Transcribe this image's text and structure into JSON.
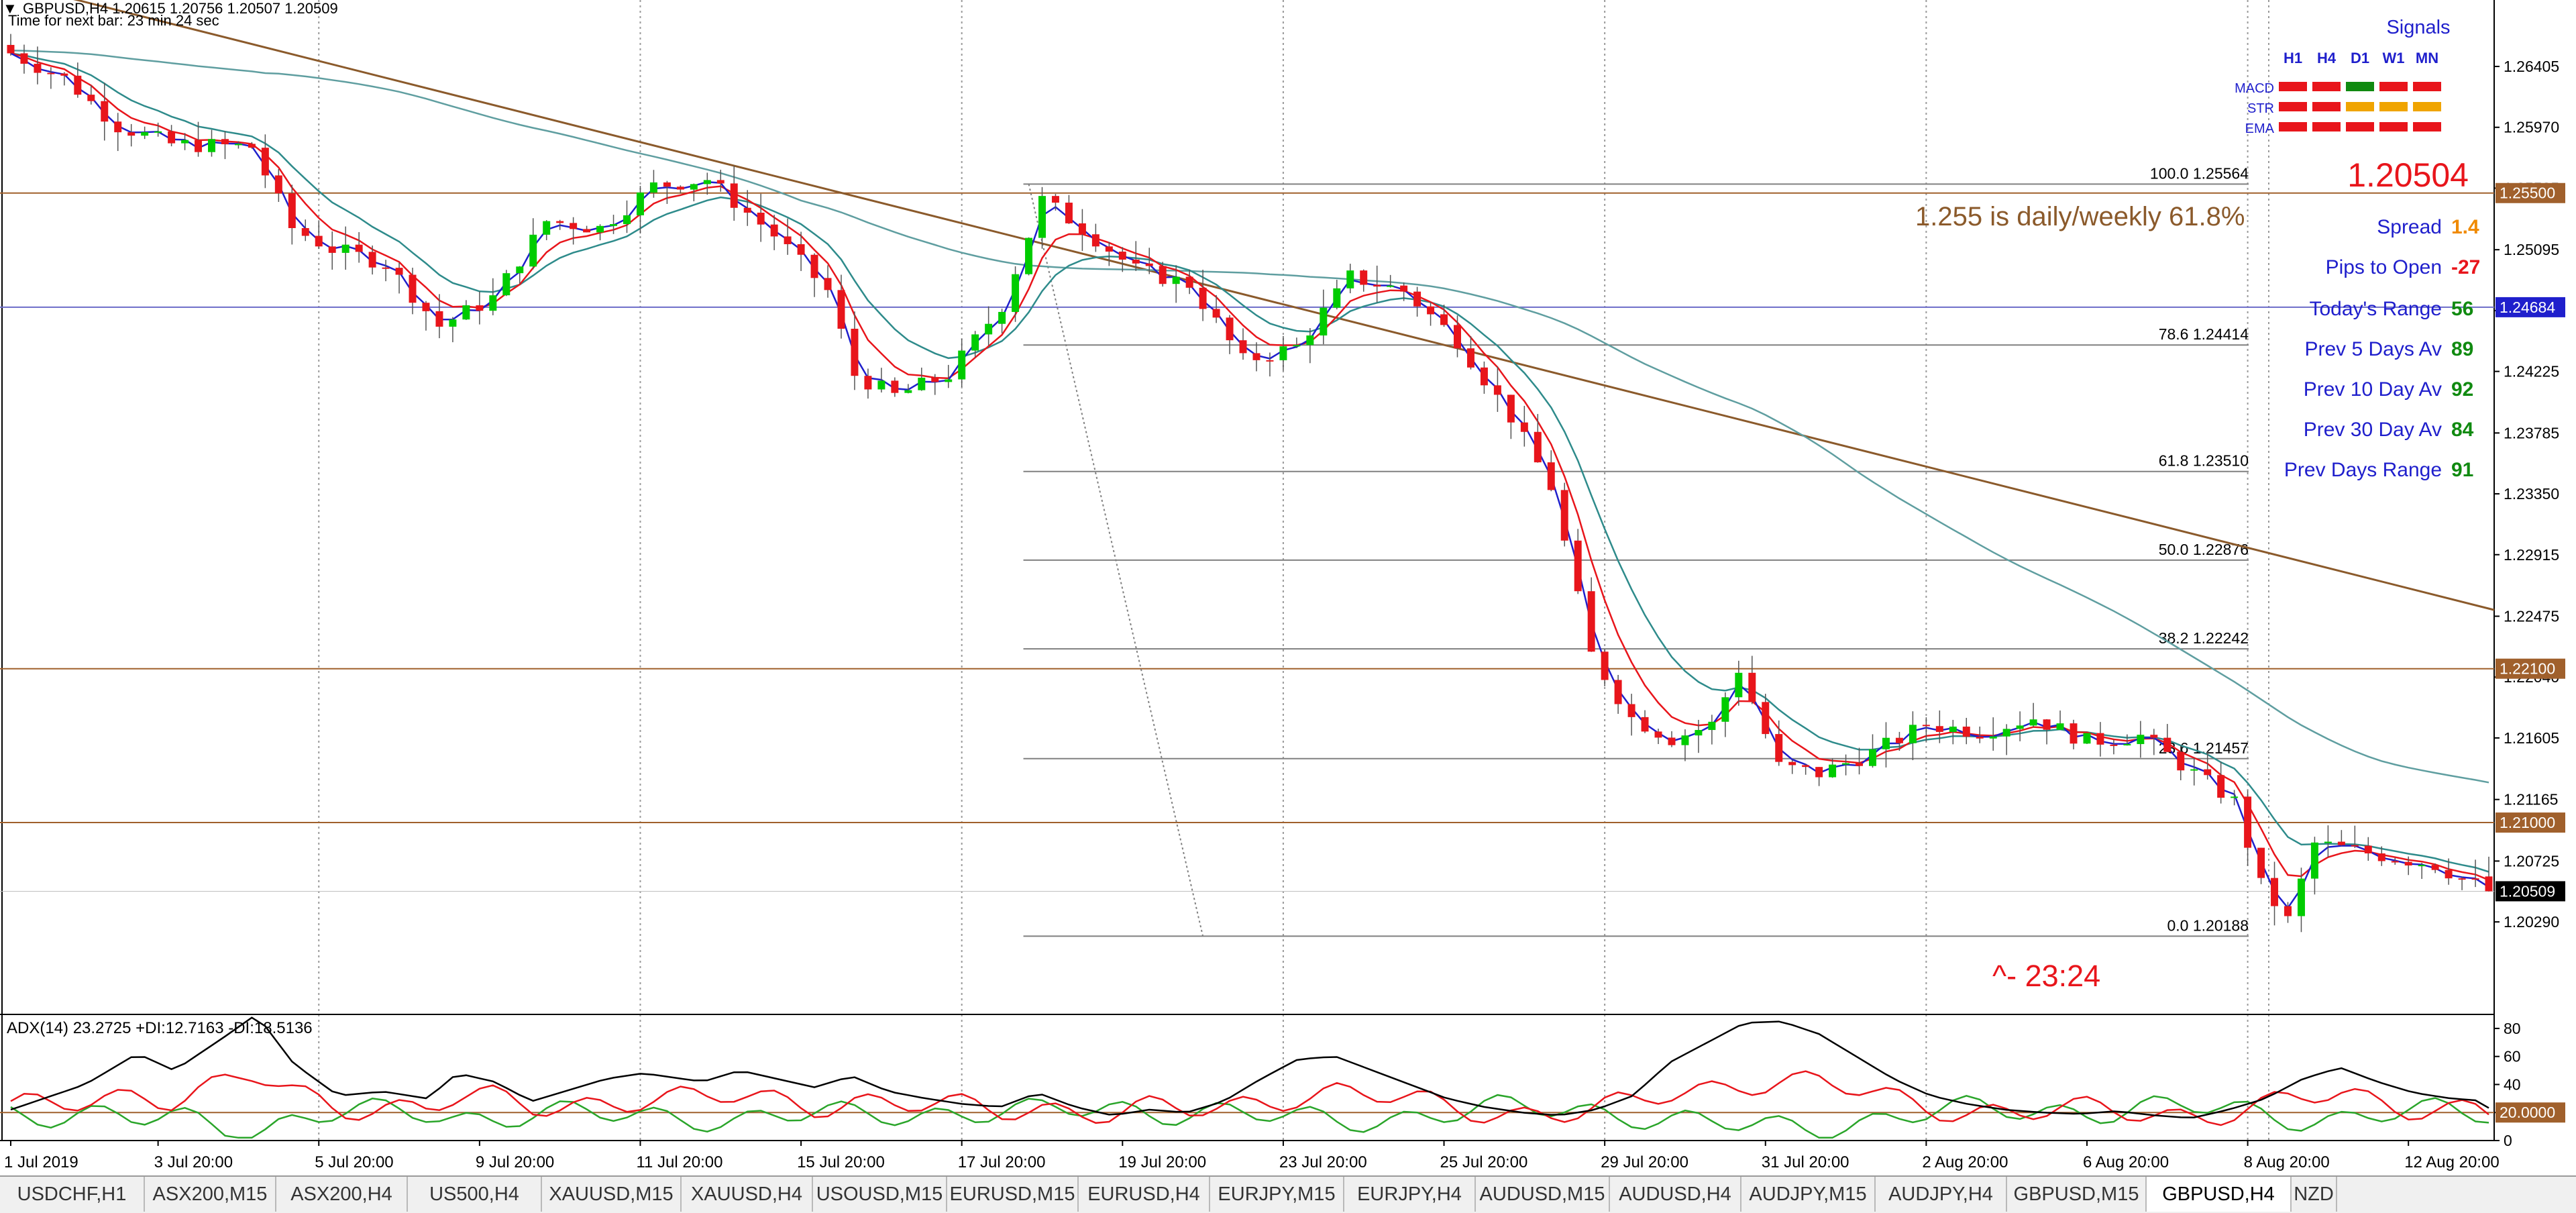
{
  "header": {
    "symbol_line": "GBPUSD,H4  1.20615 1.20756 1.20507 1.20509",
    "timer_line": "Time for next bar: 23 min 24 sec"
  },
  "signals": {
    "title": "Signals",
    "columns": [
      "H1",
      "H4",
      "D1",
      "W1",
      "MN"
    ],
    "rows": [
      {
        "label": "MACD",
        "colors": [
          "#e8151b",
          "#e8151b",
          "#108a10",
          "#e8151b",
          "#e8151b"
        ]
      },
      {
        "label": "STR",
        "colors": [
          "#e8151b",
          "#e8151b",
          "#f0a400",
          "#f0a400",
          "#f0a400"
        ]
      },
      {
        "label": "EMA",
        "colors": [
          "#e8151b",
          "#e8151b",
          "#e8151b",
          "#e8151b",
          "#e8151b"
        ]
      }
    ]
  },
  "stats": {
    "price": "1.20504",
    "rows": [
      {
        "label": "Spread",
        "value": "1.4",
        "color": "#f08a00"
      },
      {
        "label": "Pips to Open",
        "value": "-27",
        "color": "#e8151b"
      },
      {
        "label": "Today's Range",
        "value": "56",
        "color": "#108a10"
      },
      {
        "label": "Prev 5 Days Av",
        "value": "89",
        "color": "#108a10"
      },
      {
        "label": "Prev 10 Day Av",
        "value": "92",
        "color": "#108a10"
      },
      {
        "label": "Prev 30 Day Av",
        "value": "84",
        "color": "#108a10"
      },
      {
        "label": "Prev Days Range",
        "value": "91",
        "color": "#108a10"
      }
    ]
  },
  "annotations": {
    "daily_note": "1.255 is daily/weekly 61.8%",
    "countdown": "^- 23:24"
  },
  "chart_data": {
    "type": "candlestick",
    "symbol": "GBPUSD",
    "timeframe": "H4",
    "ohlc_current": {
      "open": 1.20615,
      "high": 1.20756,
      "low": 1.20507,
      "close": 1.20509
    },
    "ylim": [
      1.1995,
      1.2688
    ],
    "y_ticks": [
      "1.26405",
      "1.25970",
      "1.25535",
      "1.25095",
      "1.24660",
      "1.24225",
      "1.23785",
      "1.23350",
      "1.22915",
      "1.22475",
      "1.22040",
      "1.21605",
      "1.21165",
      "1.20725",
      "1.20290"
    ],
    "x_ticks": [
      "1 Jul 2019",
      "3 Jul 20:00",
      "5 Jul 20:00",
      "9 Jul 20:00",
      "11 Jul 20:00",
      "15 Jul 20:00",
      "17 Jul 20:00",
      "19 Jul 20:00",
      "23 Jul 20:00",
      "25 Jul 20:00",
      "29 Jul 20:00",
      "31 Jul 20:00",
      "2 Aug 20:00",
      "6 Aug 20:00",
      "8 Aug 20:00",
      "12 Aug 20:00"
    ],
    "x_tick_bars": [
      0,
      11,
      23,
      35,
      47,
      59,
      71,
      83,
      95,
      107,
      119,
      131,
      143,
      155,
      167,
      179
    ],
    "bar_count": 186,
    "price_path": [
      {
        "bar": 0,
        "price": 1.265
      },
      {
        "bar": 4,
        "price": 1.2632
      },
      {
        "bar": 8,
        "price": 1.2598
      },
      {
        "bar": 12,
        "price": 1.2585
      },
      {
        "bar": 18,
        "price": 1.2583
      },
      {
        "bar": 21,
        "price": 1.2525
      },
      {
        "bar": 24,
        "price": 1.251
      },
      {
        "bar": 28,
        "price": 1.25
      },
      {
        "bar": 32,
        "price": 1.2455
      },
      {
        "bar": 36,
        "price": 1.2475
      },
      {
        "bar": 40,
        "price": 1.253
      },
      {
        "bar": 44,
        "price": 1.2525
      },
      {
        "bar": 48,
        "price": 1.2555
      },
      {
        "bar": 52,
        "price": 1.256
      },
      {
        "bar": 57,
        "price": 1.252
      },
      {
        "bar": 61,
        "price": 1.248
      },
      {
        "bar": 63,
        "price": 1.242
      },
      {
        "bar": 66,
        "price": 1.2405
      },
      {
        "bar": 70,
        "price": 1.242
      },
      {
        "bar": 74,
        "price": 1.247
      },
      {
        "bar": 77,
        "price": 1.2545
      },
      {
        "bar": 80,
        "price": 1.2525
      },
      {
        "bar": 84,
        "price": 1.2495
      },
      {
        "bar": 88,
        "price": 1.2485
      },
      {
        "bar": 92,
        "price": 1.243
      },
      {
        "bar": 96,
        "price": 1.244
      },
      {
        "bar": 100,
        "price": 1.249
      },
      {
        "bar": 104,
        "price": 1.248
      },
      {
        "bar": 108,
        "price": 1.2445
      },
      {
        "bar": 112,
        "price": 1.239
      },
      {
        "bar": 115,
        "price": 1.234
      },
      {
        "bar": 118,
        "price": 1.222
      },
      {
        "bar": 121,
        "price": 1.2175
      },
      {
        "bar": 124,
        "price": 1.216
      },
      {
        "bar": 127,
        "price": 1.217
      },
      {
        "bar": 129,
        "price": 1.221
      },
      {
        "bar": 132,
        "price": 1.214
      },
      {
        "bar": 135,
        "price": 1.2135
      },
      {
        "bar": 139,
        "price": 1.215
      },
      {
        "bar": 143,
        "price": 1.217
      },
      {
        "bar": 147,
        "price": 1.2165
      },
      {
        "bar": 151,
        "price": 1.2175
      },
      {
        "bar": 155,
        "price": 1.2158
      },
      {
        "bar": 159,
        "price": 1.2162
      },
      {
        "bar": 163,
        "price": 1.2135
      },
      {
        "bar": 166,
        "price": 1.2115
      },
      {
        "bar": 168,
        "price": 1.2055
      },
      {
        "bar": 170,
        "price": 1.203
      },
      {
        "bar": 172,
        "price": 1.2085
      },
      {
        "bar": 175,
        "price": 1.208
      },
      {
        "bar": 178,
        "price": 1.2075
      },
      {
        "bar": 181,
        "price": 1.207
      },
      {
        "bar": 183,
        "price": 1.206
      },
      {
        "bar": 185,
        "price": 1.2051
      }
    ],
    "horizontal_levels": [
      {
        "price": 1.255,
        "color": "#a0602c",
        "label": "1.25500",
        "label_bg": "#a0602c"
      },
      {
        "price": 1.24684,
        "color": "#6c6cc8",
        "label": "1.24684",
        "label_bg": "#1f1fcc"
      },
      {
        "price": 1.221,
        "color": "#a0602c",
        "label": "1.22100",
        "label_bg": "#a0602c"
      },
      {
        "price": 1.21,
        "color": "#a0602c",
        "label": "1.21000",
        "label_bg": "#a0602c"
      },
      {
        "price": 1.20509,
        "color": "#000000",
        "label": "1.20509",
        "label_bg": "#000000"
      }
    ],
    "fibonacci": [
      {
        "level": "100.0",
        "price": 1.25564
      },
      {
        "level": "78.6",
        "price": 1.24414
      },
      {
        "level": "61.8",
        "price": 1.2351
      },
      {
        "level": "50.0",
        "price": 1.22876
      },
      {
        "level": "38.2",
        "price": 1.22242
      },
      {
        "level": "23.6",
        "price": 1.21457
      },
      {
        "level": "0.0",
        "price": 1.20188
      }
    ],
    "fib_level_text": [
      "100.0  1.25564",
      "78.6  1.24414",
      "61.8  1.23510",
      "50.0  1.22876",
      "38.2  1.22242",
      "23.6  1.21457",
      "0.0  1.20188"
    ],
    "trendline": {
      "bar1": 0,
      "price1": 1.27,
      "bar2": 186,
      "price2": 1.2252,
      "color": "#8b5a2b"
    },
    "fib_diagonal": {
      "bar1": 76,
      "price1": 1.25564,
      "bar2": 89,
      "price2": 1.20188
    },
    "ema_long_color": "#2e8b8b",
    "ema_fast_color": "#e8151b",
    "ema_fastest_color": "#1f1fcc",
    "bull_color": "#00cc00",
    "bear_color": "#e8151b",
    "indicator": {
      "name": "ADX(14)",
      "label": "ADX(14) 23.2725 +DI:12.7163 -DI:18.5136",
      "adx": 23.2725,
      "plus_di": 12.7163,
      "minus_di": 18.5136,
      "ylim": [
        0,
        90
      ],
      "y_ticks": [
        "80",
        "60",
        "40",
        "20",
        "0"
      ],
      "level": 20,
      "level_label": "20.0000",
      "adx_color": "#000000",
      "plus_color": "#2aa52a",
      "minus_color": "#e8151b"
    }
  },
  "tabs": [
    {
      "label": "USDCHF,H1",
      "active": false
    },
    {
      "label": "ASX200,M15",
      "active": false
    },
    {
      "label": "ASX200,H4",
      "active": false
    },
    {
      "label": "US500,H4",
      "active": false
    },
    {
      "label": "XAUUSD,M15",
      "active": false
    },
    {
      "label": "XAUUSD,H4",
      "active": false
    },
    {
      "label": "USOUSD,M15",
      "active": false
    },
    {
      "label": "EURUSD,M15",
      "active": false
    },
    {
      "label": "EURUSD,H4",
      "active": false
    },
    {
      "label": "EURJPY,M15",
      "active": false
    },
    {
      "label": "EURJPY,H4",
      "active": false
    },
    {
      "label": "AUDUSD,M15",
      "active": false
    },
    {
      "label": "AUDUSD,H4",
      "active": false
    },
    {
      "label": "AUDJPY,M15",
      "active": false
    },
    {
      "label": "AUDJPY,H4",
      "active": false
    },
    {
      "label": "GBPUSD,M15",
      "active": false
    },
    {
      "label": "GBPUSD,H4",
      "active": true
    },
    {
      "label": "NZD",
      "active": false
    }
  ]
}
